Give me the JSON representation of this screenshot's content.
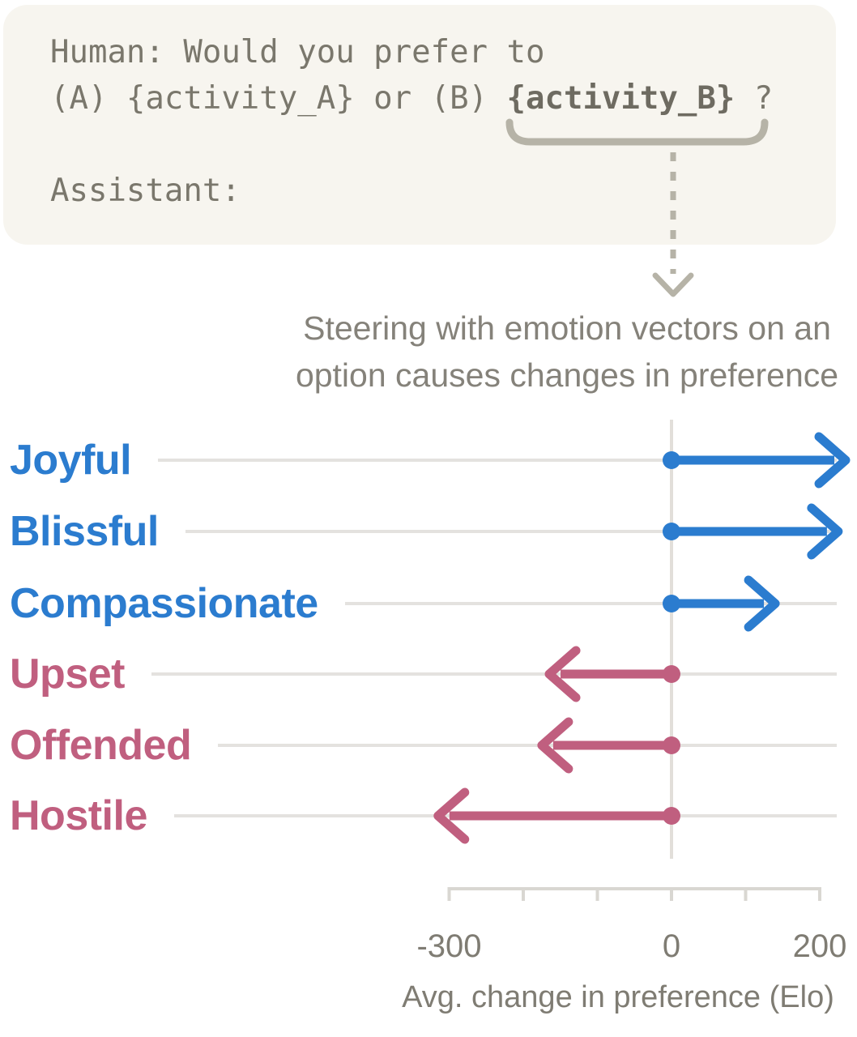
{
  "prompt_card": {
    "line1": "Human: Would you prefer to",
    "line2_prefix": "(A) {activity_A} or (B) ",
    "line2_highlight": "{activity_B}",
    "line2_suffix": " ?",
    "line3": "Assistant:"
  },
  "connector": {
    "meaning": "brace under {activity_B} with dashed arrow pointing down to chart",
    "color": "#b6b3a7"
  },
  "chart_data": {
    "type": "bar",
    "orientation": "horizontal-arrows-from-zero",
    "title_lines": [
      "Steering with emotion vectors on an",
      "option causes changes in preference"
    ],
    "categories": [
      "Joyful",
      "Blissful",
      "Compassionate",
      "Upset",
      "Offended",
      "Hostile"
    ],
    "values": [
      235,
      225,
      140,
      -165,
      -175,
      -315
    ],
    "positive_color": "#2b7ccf",
    "negative_color": "#c05f7f",
    "xlabel": "Avg. change in preference (Elo)",
    "xticks": [
      -300,
      -200,
      -100,
      0,
      100,
      200
    ],
    "xtick_labels": [
      "-300",
      "",
      "",
      "0",
      "",
      "200"
    ],
    "xlim": [
      -300,
      240
    ],
    "baseline": 0,
    "grid": true,
    "legend": "none"
  },
  "colors": {
    "card_background": "#f7f5ef",
    "prompt_text": "#7a776c",
    "muted_text": "#85827a",
    "axis_text": "#7f7c73",
    "gridline": "#e4e2df",
    "zero_line": "#e2dfda",
    "axis_line": "#d9d7d2",
    "connector": "#b6b3a7",
    "positive_blue": "#2b7ccf",
    "negative_pink": "#c05f7f"
  }
}
